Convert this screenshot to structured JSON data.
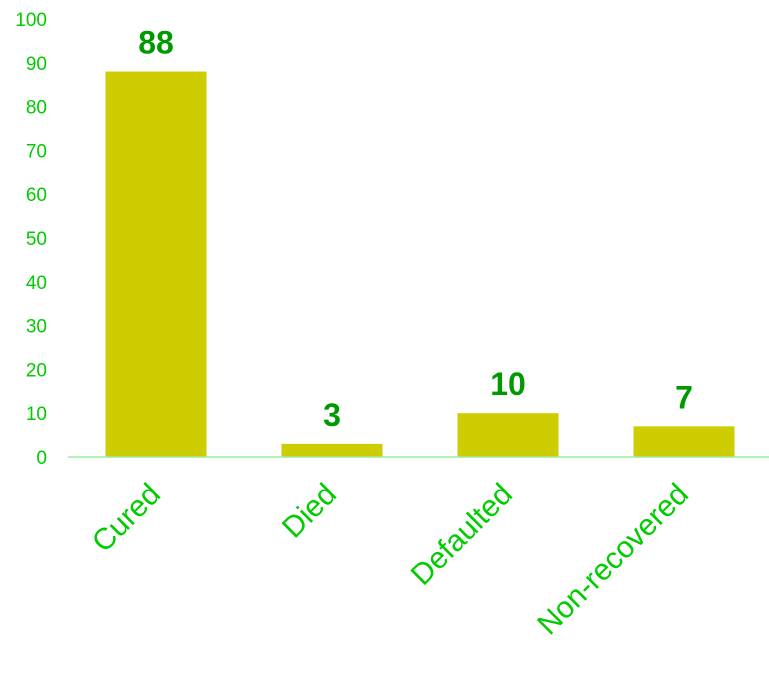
{
  "colors": {
    "bar": "#cccc00",
    "axis_text": "#00cc00",
    "data_label": "#009900",
    "axis_line": "#99ee99"
  },
  "chart_data": {
    "type": "bar",
    "title": "",
    "xlabel": "",
    "ylabel": "",
    "categories": [
      "Cured",
      "Died",
      "Defaulted",
      "Non-recovered"
    ],
    "values": [
      88,
      3,
      10,
      7
    ],
    "data_labels": [
      "88",
      "3",
      "10",
      "7"
    ],
    "ylim": [
      0,
      100
    ],
    "y_ticks": [
      0,
      10,
      20,
      30,
      40,
      50,
      60,
      70,
      80,
      90,
      100
    ],
    "y_tick_labels": [
      "0",
      "10",
      "20",
      "30",
      "40",
      "50",
      "60",
      "70",
      "80",
      "90",
      "100"
    ],
    "grid": false,
    "legend": "none"
  }
}
